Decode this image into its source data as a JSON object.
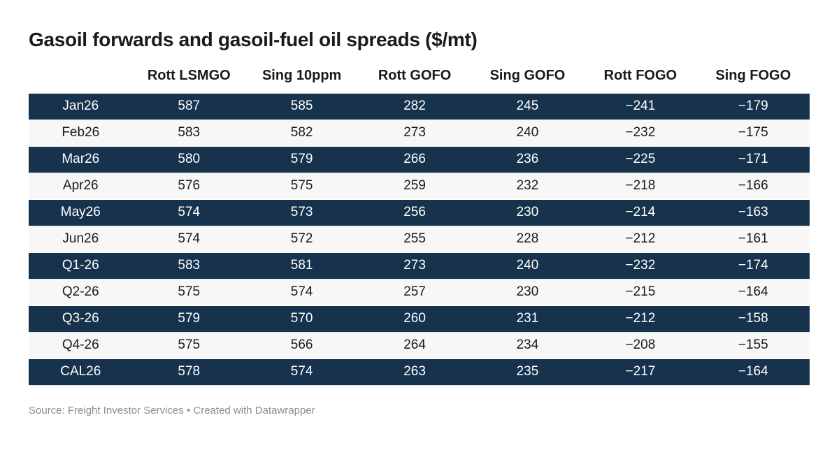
{
  "title": "Gasoil forwards and gasoil-fuel oil spreads ($/mt)",
  "table": {
    "columns": [
      "",
      "Rott LSMGO",
      "Sing 10ppm",
      "Rott GOFO",
      "Sing GOFO",
      "Rott FOGO",
      "Sing FOGO"
    ],
    "rows": [
      {
        "label": "Jan26",
        "values": [
          "587",
          "585",
          "282",
          "245",
          "−241",
          "−179"
        ]
      },
      {
        "label": "Feb26",
        "values": [
          "583",
          "582",
          "273",
          "240",
          "−232",
          "−175"
        ]
      },
      {
        "label": "Mar26",
        "values": [
          "580",
          "579",
          "266",
          "236",
          "−225",
          "−171"
        ]
      },
      {
        "label": "Apr26",
        "values": [
          "576",
          "575",
          "259",
          "232",
          "−218",
          "−166"
        ]
      },
      {
        "label": "May26",
        "values": [
          "574",
          "573",
          "256",
          "230",
          "−214",
          "−163"
        ]
      },
      {
        "label": "Jun26",
        "values": [
          "574",
          "572",
          "255",
          "228",
          "−212",
          "−161"
        ]
      },
      {
        "label": "Q1-26",
        "values": [
          "583",
          "581",
          "273",
          "240",
          "−232",
          "−174"
        ]
      },
      {
        "label": "Q2-26",
        "values": [
          "575",
          "574",
          "257",
          "230",
          "−215",
          "−164"
        ]
      },
      {
        "label": "Q3-26",
        "values": [
          "579",
          "570",
          "260",
          "231",
          "−212",
          "−158"
        ]
      },
      {
        "label": "Q4-26",
        "values": [
          "575",
          "566",
          "264",
          "234",
          "−208",
          "−155"
        ]
      },
      {
        "label": "CAL26",
        "values": [
          "578",
          "574",
          "263",
          "235",
          "−217",
          "−164"
        ]
      }
    ]
  },
  "footer": {
    "source_label": "Source:",
    "source_name": "Freight Investor Services",
    "separator": "•",
    "created_with": "Created with Datawrapper"
  },
  "colors": {
    "background": "#ffffff",
    "dark_row": "#16324c",
    "light_row": "#f8f7f7",
    "text_dark": "#1a1a1a",
    "text_on_dark": "#ffffff",
    "footer_text": "#8c8c8c"
  },
  "chart_data": {
    "type": "table",
    "title": "Gasoil forwards and gasoil-fuel oil spreads ($/mt)",
    "columns": [
      "Rott LSMGO",
      "Sing 10ppm",
      "Rott GOFO",
      "Sing GOFO",
      "Rott FOGO",
      "Sing FOGO"
    ],
    "row_labels": [
      "Jan26",
      "Feb26",
      "Mar26",
      "Apr26",
      "May26",
      "Jun26",
      "Q1-26",
      "Q2-26",
      "Q3-26",
      "Q4-26",
      "CAL26"
    ],
    "rows": [
      [
        587,
        585,
        282,
        245,
        -241,
        -179
      ],
      [
        583,
        582,
        273,
        240,
        -232,
        -175
      ],
      [
        580,
        579,
        266,
        236,
        -225,
        -171
      ],
      [
        576,
        575,
        259,
        232,
        -218,
        -166
      ],
      [
        574,
        573,
        256,
        230,
        -214,
        -163
      ],
      [
        574,
        572,
        255,
        228,
        -212,
        -161
      ],
      [
        583,
        581,
        273,
        240,
        -232,
        -174
      ],
      [
        575,
        574,
        257,
        230,
        -215,
        -164
      ],
      [
        579,
        570,
        260,
        231,
        -212,
        -158
      ],
      [
        575,
        566,
        264,
        234,
        -208,
        -155
      ],
      [
        578,
        574,
        263,
        235,
        -217,
        -164
      ]
    ],
    "source": "Freight Investor Services",
    "layout_hints": {
      "alternating_rows": "odd rows dark navy, even rows light gray",
      "all_columns_centered": true,
      "units": "$/mt"
    }
  }
}
